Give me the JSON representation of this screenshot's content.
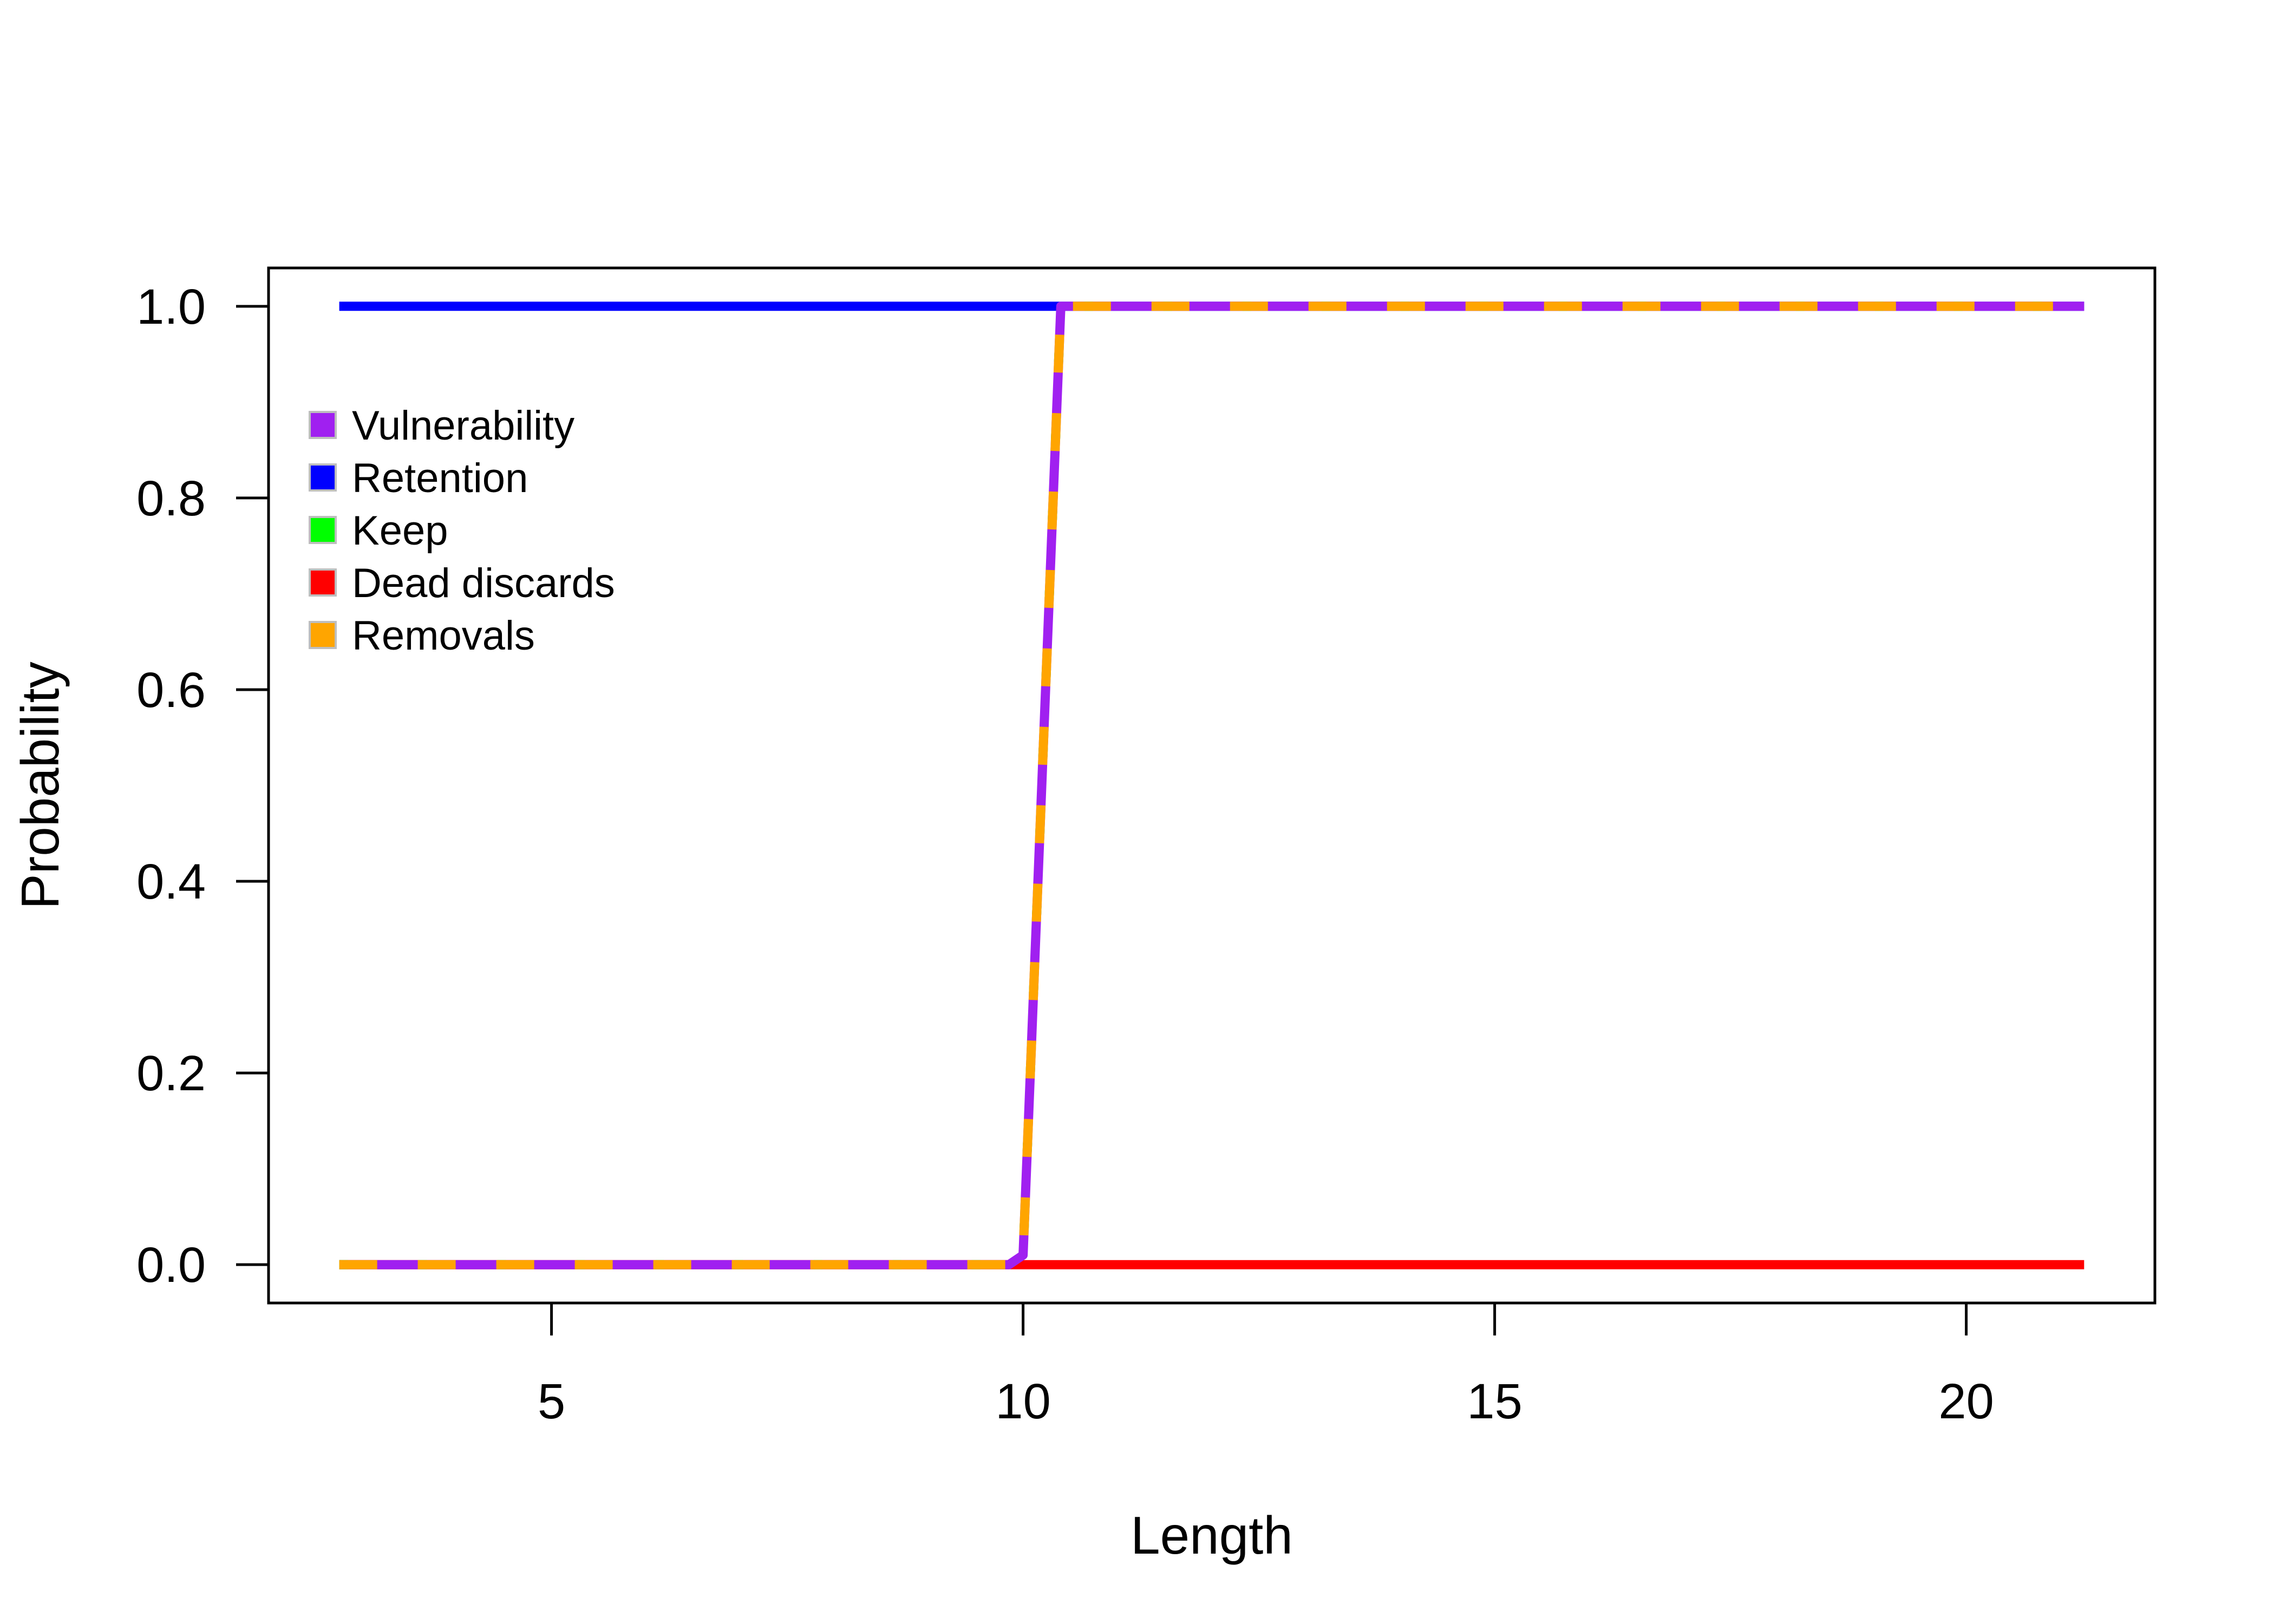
{
  "chart_data": {
    "type": "line",
    "title": "",
    "xlabel": "Length",
    "ylabel": "Probability",
    "xlim": [
      2.0,
      22.0
    ],
    "ylim": [
      -0.04,
      1.04
    ],
    "xticks": [
      5,
      10,
      15,
      20
    ],
    "yticks": [
      0.0,
      0.2,
      0.4,
      0.6,
      0.8,
      1.0
    ],
    "xtick_labels": [
      "5",
      "10",
      "15",
      "20"
    ],
    "ytick_labels": [
      "0.0",
      "0.2",
      "0.4",
      "0.6",
      "0.8",
      "1.0"
    ],
    "grid": false,
    "legend_position": "top-left",
    "series": [
      {
        "name": "Vulnerability",
        "color": "#A020F0",
        "style": "solid",
        "x": [
          2.75,
          9.85,
          10.0,
          10.4,
          10.8,
          21.25
        ],
        "y": [
          0,
          0,
          0.01,
          1,
          1,
          1
        ]
      },
      {
        "name": "Retention",
        "color": "#0000FF",
        "style": "solid",
        "x": [
          2.75,
          21.25
        ],
        "y": [
          1,
          1
        ]
      },
      {
        "name": "Keep",
        "color": "#00FF00",
        "style": "dashed-dense",
        "x": [
          2.75,
          9.85,
          10.0,
          10.4,
          10.8,
          21.25
        ],
        "y": [
          0,
          0,
          0.01,
          1,
          1,
          1
        ]
      },
      {
        "name": "Dead discards",
        "color": "#FF0000",
        "style": "solid",
        "x": [
          2.75,
          21.25
        ],
        "y": [
          0,
          0
        ]
      },
      {
        "name": "Removals",
        "color": "#FFA500",
        "style": "dashed",
        "x": [
          2.75,
          9.85,
          10.0,
          10.4,
          10.8,
          21.25
        ],
        "y": [
          0,
          0,
          0.01,
          1,
          1,
          1
        ]
      }
    ]
  }
}
